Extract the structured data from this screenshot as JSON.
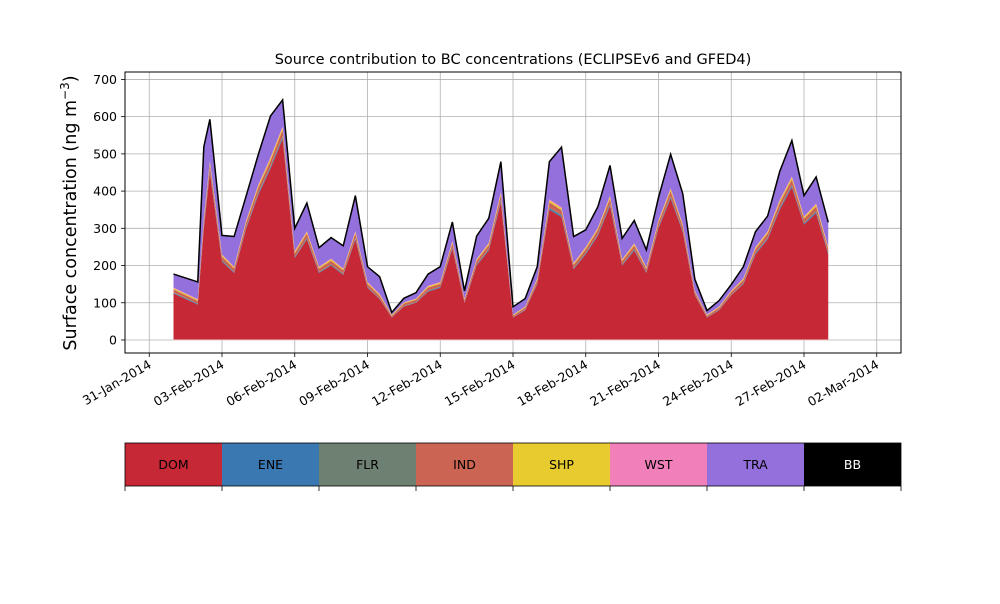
{
  "chart_data": {
    "type": "area",
    "stacked": true,
    "title": "Source contribution to BC concentrations (ECLIPSEv6 and GFED4)",
    "ylabel_main": "Surface concentration (ng m",
    "ylabel_sup": "−3",
    "ylabel_close": ")",
    "xlabel": "",
    "x_start": "2014-02-01",
    "x_end": "2014-02-28",
    "xlim": [
      "2014-01-30",
      "2014-03-03"
    ],
    "ylim": [
      -35,
      720
    ],
    "yticks": [
      0,
      100,
      200,
      300,
      400,
      500,
      600,
      700
    ],
    "ytick_labels": [
      "0",
      "100",
      "200",
      "300",
      "400",
      "500",
      "600",
      "700"
    ],
    "xticks": [
      "2014-01-31",
      "2014-02-03",
      "2014-02-06",
      "2014-02-09",
      "2014-02-12",
      "2014-02-15",
      "2014-02-18",
      "2014-02-21",
      "2014-02-24",
      "2014-02-27",
      "2014-03-02"
    ],
    "xtick_labels": [
      "31-Jan-2014",
      "03-Feb-2014",
      "06-Feb-2014",
      "09-Feb-2014",
      "12-Feb-2014",
      "15-Feb-2014",
      "18-Feb-2014",
      "21-Feb-2014",
      "24-Feb-2014",
      "27-Feb-2014",
      "02-Mar-2014"
    ],
    "grid": true,
    "series": [
      {
        "name": "DOM",
        "color": "#c62835",
        "x": [
          "2014-02-01",
          "2014-02-02",
          "2014-02-02 06:00",
          "2014-02-02 12:00",
          "2014-02-03",
          "2014-02-03 12:00",
          "2014-02-04",
          "2014-02-04 12:00",
          "2014-02-05",
          "2014-02-05 12:00",
          "2014-02-06",
          "2014-02-06 12:00",
          "2014-02-07",
          "2014-02-07 12:00",
          "2014-02-08",
          "2014-02-08 12:00",
          "2014-02-09",
          "2014-02-09 12:00",
          "2014-02-10",
          "2014-02-10 12:00",
          "2014-02-11",
          "2014-02-11 12:00",
          "2014-02-12",
          "2014-02-12 12:00",
          "2014-02-13",
          "2014-02-13 12:00",
          "2014-02-14",
          "2014-02-14 12:00",
          "2014-02-15",
          "2014-02-15 12:00",
          "2014-02-16",
          "2014-02-16 12:00",
          "2014-02-17",
          "2014-02-17 12:00",
          "2014-02-18",
          "2014-02-18 12:00",
          "2014-02-19",
          "2014-02-19 12:00",
          "2014-02-20",
          "2014-02-20 12:00",
          "2014-02-21",
          "2014-02-21 12:00",
          "2014-02-22",
          "2014-02-22 12:00",
          "2014-02-23",
          "2014-02-23 12:00",
          "2014-02-24",
          "2014-02-24 12:00",
          "2014-02-25",
          "2014-02-25 12:00",
          "2014-02-26",
          "2014-02-26 12:00",
          "2014-02-27",
          "2014-02-27 12:00",
          "2014-02-28"
        ],
        "values": [
          125,
          95,
          300,
          450,
          210,
          180,
          300,
          390,
          460,
          540,
          220,
          270,
          180,
          200,
          175,
          270,
          140,
          110,
          60,
          90,
          100,
          130,
          140,
          245,
          100,
          200,
          240,
          370,
          60,
          80,
          150,
          350,
          330,
          190,
          230,
          280,
          360,
          200,
          240,
          180,
          300,
          380,
          290,
          120,
          60,
          80,
          120,
          150,
          230,
          270,
          350,
          410,
          310,
          340,
          230
        ]
      },
      {
        "name": "ENE",
        "color": "#3a78b1",
        "values": [
          2,
          2,
          4,
          5,
          3,
          2,
          3,
          4,
          4,
          5,
          2,
          3,
          2,
          2,
          2,
          3,
          2,
          1,
          1,
          1,
          1,
          2,
          2,
          3,
          1,
          2,
          3,
          4,
          1,
          1,
          2,
          4,
          4,
          2,
          3,
          3,
          4,
          2,
          3,
          2,
          3,
          4,
          3,
          1,
          1,
          1,
          1,
          2,
          3,
          3,
          4,
          4,
          3,
          4,
          3
        ]
      },
      {
        "name": "FLR",
        "color": "#6e8072",
        "values": [
          1,
          1,
          2,
          2,
          1,
          1,
          1,
          2,
          2,
          2,
          1,
          1,
          1,
          1,
          1,
          1,
          1,
          1,
          0,
          1,
          1,
          1,
          1,
          1,
          1,
          1,
          1,
          2,
          0,
          1,
          1,
          2,
          2,
          1,
          1,
          1,
          2,
          1,
          1,
          1,
          1,
          2,
          1,
          1,
          0,
          1,
          1,
          1,
          1,
          1,
          2,
          2,
          1,
          2,
          1
        ]
      },
      {
        "name": "IND",
        "color": "#cc6453",
        "values": [
          8,
          7,
          14,
          16,
          10,
          9,
          12,
          14,
          16,
          18,
          10,
          12,
          9,
          10,
          9,
          12,
          8,
          7,
          4,
          6,
          6,
          8,
          8,
          11,
          6,
          10,
          11,
          14,
          4,
          5,
          8,
          14,
          13,
          9,
          10,
          12,
          14,
          9,
          10,
          8,
          12,
          14,
          12,
          7,
          4,
          5,
          7,
          8,
          10,
          12,
          13,
          15,
          12,
          13,
          10
        ]
      },
      {
        "name": "SHP",
        "color": "#e8cc2f",
        "values": [
          3,
          3,
          5,
          6,
          4,
          3,
          4,
          5,
          6,
          6,
          4,
          4,
          3,
          4,
          3,
          4,
          3,
          3,
          2,
          2,
          2,
          3,
          3,
          4,
          2,
          3,
          4,
          5,
          2,
          2,
          3,
          5,
          5,
          3,
          4,
          4,
          5,
          3,
          4,
          3,
          4,
          5,
          4,
          2,
          2,
          2,
          2,
          3,
          4,
          4,
          5,
          6,
          4,
          5,
          4
        ]
      },
      {
        "name": "WST",
        "color": "#f07fba",
        "values": [
          2,
          2,
          3,
          3,
          2,
          2,
          2,
          3,
          3,
          3,
          2,
          2,
          2,
          2,
          2,
          2,
          2,
          2,
          1,
          1,
          1,
          2,
          2,
          2,
          1,
          2,
          2,
          3,
          1,
          1,
          2,
          3,
          3,
          2,
          2,
          2,
          3,
          2,
          2,
          2,
          2,
          3,
          2,
          1,
          1,
          1,
          2,
          2,
          2,
          2,
          3,
          3,
          2,
          3,
          2
        ]
      },
      {
        "name": "TRA",
        "color": "#9370db",
        "values": [
          35,
          45,
          190,
          110,
          50,
          80,
          65,
          80,
          110,
          70,
          60,
          75,
          50,
          55,
          60,
          95,
          40,
          45,
          5,
          10,
          15,
          30,
          40,
          50,
          20,
          60,
          65,
          80,
          20,
          20,
          30,
          100,
          160,
          70,
          45,
          55,
          80,
          55,
          60,
          45,
          60,
          90,
          80,
          30,
          10,
          15,
          15,
          30,
          40,
          40,
          75,
          95,
          55,
          70,
          65
        ]
      },
      {
        "name": "BB",
        "color": "#000000",
        "values": [
          1,
          1,
          1,
          1,
          1,
          1,
          1,
          1,
          1,
          1,
          1,
          1,
          1,
          1,
          1,
          1,
          1,
          1,
          1,
          1,
          1,
          1,
          1,
          1,
          1,
          1,
          1,
          1,
          1,
          1,
          1,
          1,
          1,
          1,
          1,
          1,
          1,
          1,
          1,
          1,
          1,
          1,
          1,
          1,
          1,
          1,
          1,
          1,
          1,
          1,
          1,
          1,
          1,
          1,
          1
        ]
      }
    ],
    "legend": {
      "placement": "bottom",
      "entries": [
        {
          "label": "DOM",
          "color": "#c62835",
          "text_color": "#000000"
        },
        {
          "label": "ENE",
          "color": "#3a78b1",
          "text_color": "#000000"
        },
        {
          "label": "FLR",
          "color": "#6e8072",
          "text_color": "#000000"
        },
        {
          "label": "IND",
          "color": "#cc6453",
          "text_color": "#000000"
        },
        {
          "label": "SHP",
          "color": "#e8cc2f",
          "text_color": "#000000"
        },
        {
          "label": "WST",
          "color": "#f07fba",
          "text_color": "#000000"
        },
        {
          "label": "TRA",
          "color": "#9370db",
          "text_color": "#000000"
        },
        {
          "label": "BB",
          "color": "#000000",
          "text_color": "#ffffff"
        }
      ]
    }
  }
}
